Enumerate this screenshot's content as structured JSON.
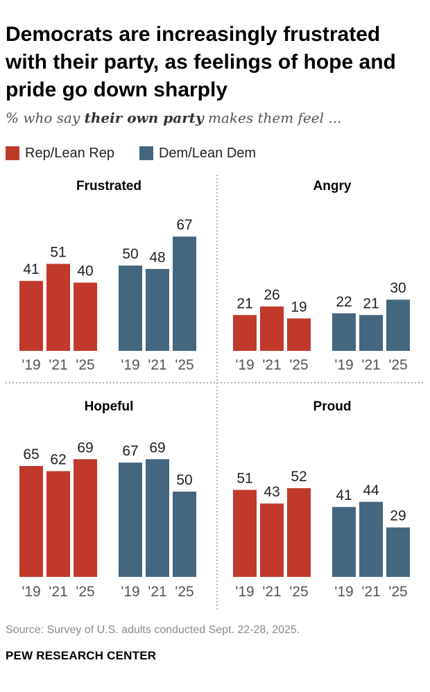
{
  "title": "Democrats are increasingly frustrated with their party, as feelings of hope and pride go down sharply",
  "subtitle": {
    "prefix": "% who say ",
    "emphasis": "their own party",
    "suffix": " makes them feel ..."
  },
  "legend": [
    {
      "label": "Rep/Lean Rep",
      "color": "#c0392b"
    },
    {
      "label": "Dem/Lean Dem",
      "color": "#44667f"
    }
  ],
  "chart_data": {
    "type": "bar",
    "categories": [
      "'19",
      "'21",
      "'25"
    ],
    "panels": [
      {
        "name": "Frustrated",
        "series": [
          {
            "name": "Rep/Lean Rep",
            "values": [
              41,
              51,
              40
            ]
          },
          {
            "name": "Dem/Lean Dem",
            "values": [
              50,
              48,
              67
            ]
          }
        ]
      },
      {
        "name": "Angry",
        "series": [
          {
            "name": "Rep/Lean Rep",
            "values": [
              21,
              26,
              19
            ]
          },
          {
            "name": "Dem/Lean Dem",
            "values": [
              22,
              21,
              30
            ]
          }
        ]
      },
      {
        "name": "Hopeful",
        "series": [
          {
            "name": "Rep/Lean Rep",
            "values": [
              65,
              62,
              69
            ]
          },
          {
            "name": "Dem/Lean Dem",
            "values": [
              67,
              69,
              50
            ]
          }
        ]
      },
      {
        "name": "Proud",
        "series": [
          {
            "name": "Rep/Lean Rep",
            "values": [
              51,
              43,
              52
            ]
          },
          {
            "name": "Dem/Lean Dem",
            "values": [
              41,
              44,
              29
            ]
          }
        ]
      }
    ],
    "grid": false,
    "legend_position": "top-left"
  },
  "source": "Source: Survey of U.S. adults conducted Sept. 22-28, 2025.",
  "brand": "PEW RESEARCH CENTER"
}
